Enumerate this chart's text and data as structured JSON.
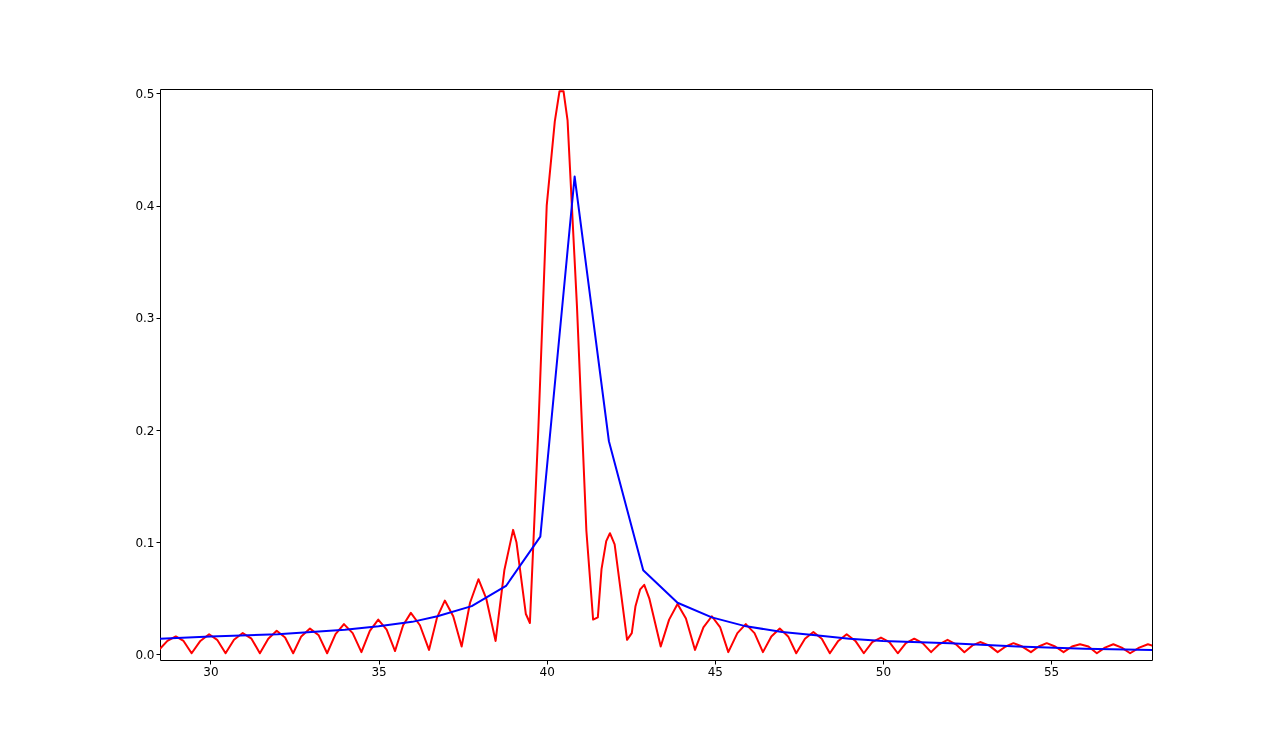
{
  "chart_data": {
    "type": "line",
    "xlim": [
      28.5,
      58.0
    ],
    "ylim": [
      -0.005,
      0.504
    ],
    "xticks": [
      30,
      35,
      40,
      45,
      50,
      55
    ],
    "yticks": [
      {
        "value": 0,
        "label": "0.0"
      },
      {
        "value": 0.1,
        "label": "0.1"
      },
      {
        "value": 0.2,
        "label": "0.2"
      },
      {
        "value": 0.3,
        "label": "0.3"
      },
      {
        "value": 0.4,
        "label": "0.4"
      },
      {
        "value": 0.5,
        "label": "0.5"
      }
    ],
    "grid": false,
    "line_style": "solid",
    "marker": "none",
    "series": [
      {
        "color": "#ff0000",
        "x": [
          28.5,
          28.72,
          28.97,
          29.2,
          29.44,
          29.7,
          29.96,
          30.2,
          30.45,
          30.7,
          30.96,
          31.22,
          31.47,
          31.72,
          31.97,
          32.22,
          32.46,
          32.7,
          32.96,
          33.22,
          33.47,
          33.72,
          33.97,
          34.23,
          34.49,
          34.74,
          34.99,
          35.24,
          35.49,
          35.73,
          35.96,
          36.23,
          36.5,
          36.74,
          36.97,
          37.22,
          37.47,
          37.72,
          37.97,
          38.2,
          38.48,
          38.74,
          39.0,
          39.1,
          39.38,
          39.5,
          39.75,
          40.0,
          40.24,
          40.38,
          40.5,
          40.62,
          40.9,
          41.18,
          41.38,
          41.52,
          41.63,
          41.77,
          41.88,
          42.02,
          42.19,
          42.39,
          42.53,
          42.64,
          42.78,
          42.9,
          43.05,
          43.39,
          43.64,
          43.89,
          44.14,
          44.41,
          44.66,
          44.91,
          45.16,
          45.4,
          45.67,
          45.92,
          46.18,
          46.43,
          46.68,
          46.93,
          47.18,
          47.42,
          47.68,
          47.93,
          48.18,
          48.42,
          48.67,
          48.92,
          49.18,
          49.43,
          49.68,
          49.94,
          50.19,
          50.44,
          50.68,
          50.93,
          51.18,
          51.43,
          51.67,
          51.92,
          52.17,
          52.42,
          52.66,
          52.89,
          53.15,
          53.41,
          53.65,
          53.88,
          54.14,
          54.4,
          54.63,
          54.87,
          55.12,
          55.37,
          55.62,
          55.86,
          56.11,
          56.36,
          56.6,
          56.85,
          57.1,
          57.35,
          57.62,
          57.88,
          58.0
        ],
        "values": [
          0.005,
          0.012,
          0.016,
          0.012,
          0.001,
          0.012,
          0.018,
          0.013,
          0.001,
          0.013,
          0.019,
          0.014,
          0.001,
          0.014,
          0.021,
          0.015,
          0.001,
          0.016,
          0.023,
          0.017,
          0.001,
          0.018,
          0.027,
          0.019,
          0.002,
          0.021,
          0.031,
          0.022,
          0.003,
          0.026,
          0.037,
          0.026,
          0.004,
          0.033,
          0.048,
          0.034,
          0.007,
          0.046,
          0.067,
          0.05,
          0.012,
          0.075,
          0.111,
          0.1,
          0.036,
          0.028,
          0.2,
          0.4,
          0.475,
          0.502,
          0.502,
          0.476,
          0.31,
          0.11,
          0.031,
          0.033,
          0.076,
          0.101,
          0.108,
          0.098,
          0.059,
          0.013,
          0.019,
          0.043,
          0.058,
          0.062,
          0.05,
          0.007,
          0.031,
          0.045,
          0.032,
          0.004,
          0.024,
          0.034,
          0.024,
          0.002,
          0.019,
          0.027,
          0.019,
          0.002,
          0.016,
          0.023,
          0.016,
          0.001,
          0.014,
          0.02,
          0.014,
          0.001,
          0.012,
          0.018,
          0.012,
          0.001,
          0.011,
          0.015,
          0.011,
          0.001,
          0.01,
          0.014,
          0.01,
          0.002,
          0.009,
          0.013,
          0.009,
          0.002,
          0.008,
          0.011,
          0.008,
          0.002,
          0.007,
          0.01,
          0.007,
          0.002,
          0.007,
          0.01,
          0.007,
          0.002,
          0.007,
          0.009,
          0.007,
          0.001,
          0.006,
          0.009,
          0.006,
          0.001,
          0.006,
          0.009,
          0.008
        ]
      },
      {
        "color": "#0000ff",
        "x": [
          28.5,
          30.0,
          32.0,
          34.0,
          35.0,
          36.0,
          36.75,
          37.77,
          38.79,
          39.81,
          40.83,
          41.85,
          42.87,
          43.89,
          44.91,
          45.93,
          47.0,
          48.0,
          49.0,
          50.0,
          52.0,
          54.0,
          56.0,
          58.0
        ],
        "values": [
          0.014,
          0.016,
          0.018,
          0.022,
          0.025,
          0.029,
          0.034,
          0.043,
          0.061,
          0.105,
          0.426,
          0.19,
          0.075,
          0.046,
          0.033,
          0.025,
          0.02,
          0.017,
          0.014,
          0.012,
          0.01,
          0.007,
          0.005,
          0.004
        ]
      }
    ]
  }
}
